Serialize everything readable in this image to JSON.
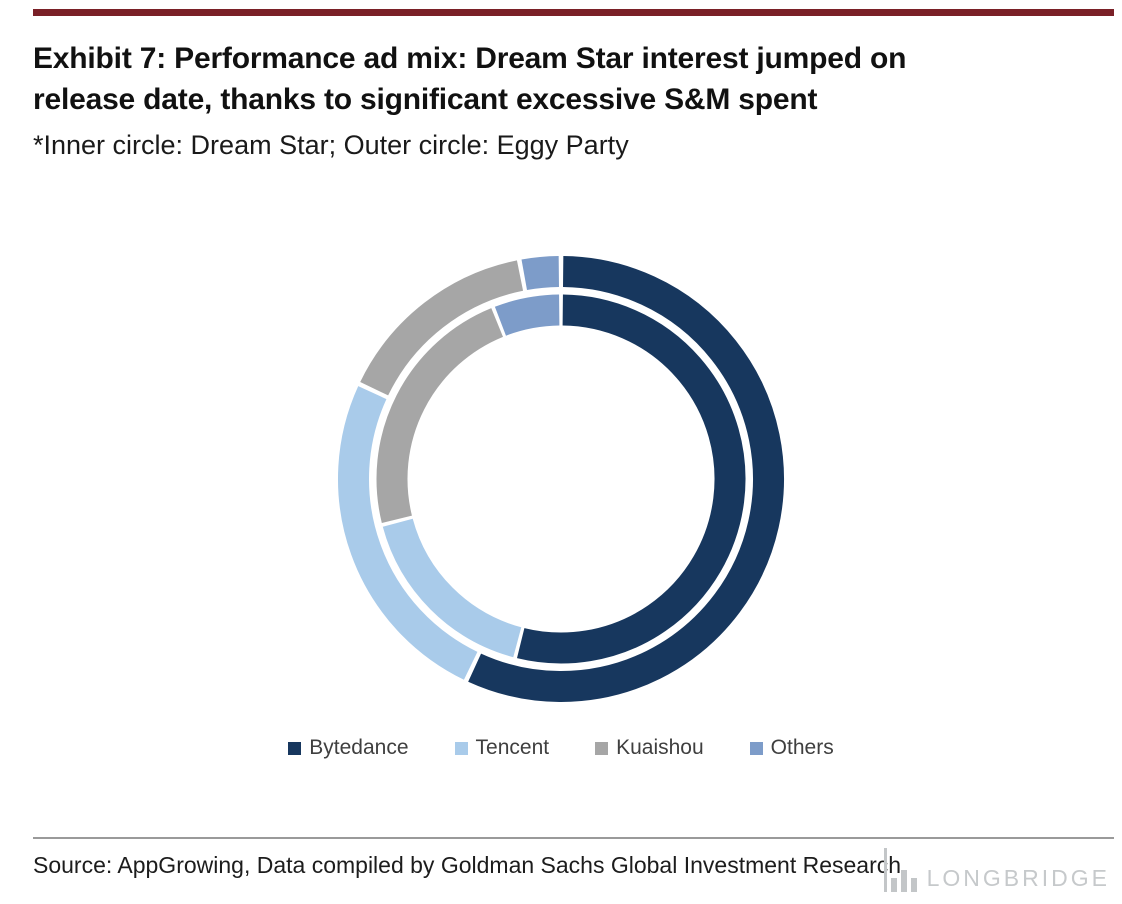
{
  "header": {
    "title_line1": "Exhibit 7: Performance ad mix: Dream Star interest jumped on",
    "title_line2": "release date, thanks to significant excessive S&M spent",
    "subtitle": "*Inner circle: Dream Star; Outer circle: Eggy Party",
    "accent_bar_color": "#7A2027"
  },
  "chart_data": {
    "type": "pie",
    "subtype": "double-ring-donut",
    "note": "Inner circle: Dream Star; Outer circle: Eggy Party",
    "categories": [
      "Bytedance",
      "Tencent",
      "Kuaishou",
      "Others"
    ],
    "colors": [
      "#17375E",
      "#A9CBEA",
      "#A6A6A6",
      "#7D9CC9"
    ],
    "series": [
      {
        "name": "Dream Star",
        "ring": "inner",
        "values": [
          54,
          17,
          23,
          6
        ]
      },
      {
        "name": "Eggy Party",
        "ring": "outer",
        "values": [
          57,
          25,
          15,
          3
        ]
      }
    ],
    "start_angle": "top",
    "direction": "clockwise",
    "legend_position": "bottom",
    "units": "percent"
  },
  "footer": {
    "source": "Source: AppGrowing, Data compiled by Goldman Sachs Global Investment Research",
    "watermark": "LONGBRIDGE"
  }
}
